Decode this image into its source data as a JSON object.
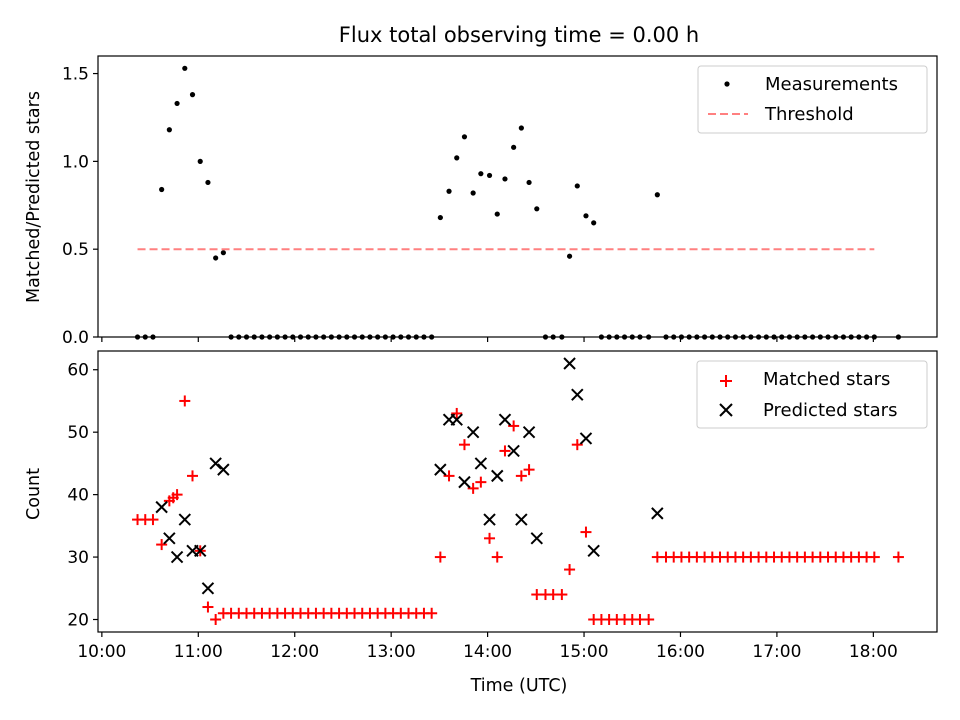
{
  "chart_data": {
    "title": "Flux total observing time = 0.00 h",
    "x_unit": "hours UTC (decimal)",
    "xlim": [
      9.96,
      18.66
    ],
    "xlabel": "Time (UTC)",
    "xtick_values": [
      10,
      11,
      12,
      13,
      14,
      15,
      16,
      17,
      18
    ],
    "xtick_labels": [
      "10:00",
      "11:00",
      "12:00",
      "13:00",
      "14:00",
      "15:00",
      "16:00",
      "17:00",
      "18:00"
    ],
    "panels": [
      {
        "type": "scatter",
        "ylabel": "Matched/Predicted stars",
        "ylim": [
          0,
          1.6
        ],
        "ytick_values": [
          0,
          0.5,
          1.0,
          1.5
        ],
        "ytick_labels": [
          "0.0",
          "0.5",
          "1.0",
          "1.5"
        ],
        "legend_position": "top-right",
        "series": [
          {
            "name": "Measurements",
            "marker": "dot",
            "color": "#000000",
            "points": [
              [
                10.37,
                0
              ],
              [
                10.45,
                0
              ],
              [
                10.53,
                0
              ],
              [
                10.62,
                0.84
              ],
              [
                10.7,
                1.18
              ],
              [
                10.78,
                1.33
              ],
              [
                10.86,
                1.53
              ],
              [
                10.94,
                1.38
              ],
              [
                11.02,
                1.0
              ],
              [
                11.1,
                0.88
              ],
              [
                11.18,
                0.45
              ],
              [
                11.26,
                0.48
              ],
              [
                11.34,
                0
              ],
              [
                11.42,
                0
              ],
              [
                11.5,
                0
              ],
              [
                11.58,
                0
              ],
              [
                11.66,
                0
              ],
              [
                11.74,
                0
              ],
              [
                11.82,
                0
              ],
              [
                11.9,
                0
              ],
              [
                11.98,
                0
              ],
              [
                12.06,
                0
              ],
              [
                12.14,
                0
              ],
              [
                12.22,
                0
              ],
              [
                12.3,
                0
              ],
              [
                12.38,
                0
              ],
              [
                12.46,
                0
              ],
              [
                12.54,
                0
              ],
              [
                12.62,
                0
              ],
              [
                12.7,
                0
              ],
              [
                12.78,
                0
              ],
              [
                12.86,
                0
              ],
              [
                12.94,
                0
              ],
              [
                13.02,
                0
              ],
              [
                13.1,
                0
              ],
              [
                13.18,
                0
              ],
              [
                13.26,
                0
              ],
              [
                13.34,
                0
              ],
              [
                13.42,
                0
              ],
              [
                13.51,
                0.68
              ],
              [
                13.6,
                0.83
              ],
              [
                13.68,
                1.02
              ],
              [
                13.76,
                1.14
              ],
              [
                13.85,
                0.82
              ],
              [
                13.93,
                0.93
              ],
              [
                14.02,
                0.92
              ],
              [
                14.1,
                0.7
              ],
              [
                14.18,
                0.9
              ],
              [
                14.27,
                1.08
              ],
              [
                14.35,
                1.19
              ],
              [
                14.43,
                0.88
              ],
              [
                14.51,
                0.73
              ],
              [
                14.6,
                0
              ],
              [
                14.68,
                0
              ],
              [
                14.77,
                0
              ],
              [
                14.85,
                0.46
              ],
              [
                14.93,
                0.86
              ],
              [
                15.02,
                0.69
              ],
              [
                15.1,
                0.65
              ],
              [
                15.18,
                0
              ],
              [
                15.26,
                0
              ],
              [
                15.34,
                0
              ],
              [
                15.42,
                0
              ],
              [
                15.5,
                0
              ],
              [
                15.58,
                0
              ],
              [
                15.67,
                0
              ],
              [
                15.76,
                0.81
              ],
              [
                15.85,
                0
              ],
              [
                15.93,
                0
              ],
              [
                16.01,
                0
              ],
              [
                16.09,
                0
              ],
              [
                16.17,
                0
              ],
              [
                16.25,
                0
              ],
              [
                16.33,
                0
              ],
              [
                16.41,
                0
              ],
              [
                16.49,
                0
              ],
              [
                16.57,
                0
              ],
              [
                16.65,
                0
              ],
              [
                16.73,
                0
              ],
              [
                16.81,
                0
              ],
              [
                16.89,
                0
              ],
              [
                16.97,
                0
              ],
              [
                17.05,
                0
              ],
              [
                17.13,
                0
              ],
              [
                17.21,
                0
              ],
              [
                17.29,
                0
              ],
              [
                17.37,
                0
              ],
              [
                17.45,
                0
              ],
              [
                17.53,
                0
              ],
              [
                17.61,
                0
              ],
              [
                17.69,
                0
              ],
              [
                17.77,
                0
              ],
              [
                17.85,
                0
              ],
              [
                17.93,
                0
              ],
              [
                18.01,
                0
              ],
              [
                18.26,
                0
              ]
            ]
          },
          {
            "name": "Threshold",
            "line_style": "dashed",
            "color": "#ff8080",
            "x_range": [
              10.37,
              18.01
            ],
            "y": 0.5
          }
        ]
      },
      {
        "type": "scatter",
        "ylabel": "Count",
        "ylim": [
          18,
          63
        ],
        "ytick_values": [
          20,
          30,
          40,
          50,
          60
        ],
        "ytick_labels": [
          "20",
          "30",
          "40",
          "50",
          "60"
        ],
        "legend_position": "top-right",
        "series": [
          {
            "name": "Matched stars",
            "marker": "plus",
            "color": "#ff0000",
            "points": [
              [
                10.37,
                36
              ],
              [
                10.45,
                36
              ],
              [
                10.53,
                36
              ],
              [
                10.62,
                32
              ],
              [
                10.7,
                39
              ],
              [
                10.74,
                39.5
              ],
              [
                10.78,
                40
              ],
              [
                10.86,
                55
              ],
              [
                10.94,
                43
              ],
              [
                11.02,
                31
              ],
              [
                11.1,
                22
              ],
              [
                11.18,
                20
              ],
              [
                11.26,
                21
              ],
              [
                11.34,
                21
              ],
              [
                11.42,
                21
              ],
              [
                11.5,
                21
              ],
              [
                11.58,
                21
              ],
              [
                11.66,
                21
              ],
              [
                11.74,
                21
              ],
              [
                11.82,
                21
              ],
              [
                11.9,
                21
              ],
              [
                11.98,
                21
              ],
              [
                12.06,
                21
              ],
              [
                12.14,
                21
              ],
              [
                12.22,
                21
              ],
              [
                12.3,
                21
              ],
              [
                12.38,
                21
              ],
              [
                12.46,
                21
              ],
              [
                12.54,
                21
              ],
              [
                12.62,
                21
              ],
              [
                12.7,
                21
              ],
              [
                12.78,
                21
              ],
              [
                12.86,
                21
              ],
              [
                12.94,
                21
              ],
              [
                13.02,
                21
              ],
              [
                13.1,
                21
              ],
              [
                13.18,
                21
              ],
              [
                13.26,
                21
              ],
              [
                13.34,
                21
              ],
              [
                13.42,
                21
              ],
              [
                13.51,
                30
              ],
              [
                13.6,
                43
              ],
              [
                13.68,
                53
              ],
              [
                13.76,
                48
              ],
              [
                13.85,
                41
              ],
              [
                13.93,
                42
              ],
              [
                14.02,
                33
              ],
              [
                14.1,
                30
              ],
              [
                14.18,
                47
              ],
              [
                14.27,
                51
              ],
              [
                14.35,
                43
              ],
              [
                14.43,
                44
              ],
              [
                14.51,
                24
              ],
              [
                14.6,
                24
              ],
              [
                14.68,
                24
              ],
              [
                14.77,
                24
              ],
              [
                14.85,
                28
              ],
              [
                14.93,
                48
              ],
              [
                15.02,
                34
              ],
              [
                15.1,
                20
              ],
              [
                15.18,
                20
              ],
              [
                15.26,
                20
              ],
              [
                15.34,
                20
              ],
              [
                15.42,
                20
              ],
              [
                15.5,
                20
              ],
              [
                15.58,
                20
              ],
              [
                15.67,
                20
              ],
              [
                15.76,
                30
              ],
              [
                15.85,
                30
              ],
              [
                15.93,
                30
              ],
              [
                16.01,
                30
              ],
              [
                16.09,
                30
              ],
              [
                16.17,
                30
              ],
              [
                16.25,
                30
              ],
              [
                16.33,
                30
              ],
              [
                16.41,
                30
              ],
              [
                16.49,
                30
              ],
              [
                16.57,
                30
              ],
              [
                16.65,
                30
              ],
              [
                16.73,
                30
              ],
              [
                16.81,
                30
              ],
              [
                16.89,
                30
              ],
              [
                16.97,
                30
              ],
              [
                17.05,
                30
              ],
              [
                17.13,
                30
              ],
              [
                17.21,
                30
              ],
              [
                17.29,
                30
              ],
              [
                17.37,
                30
              ],
              [
                17.45,
                30
              ],
              [
                17.53,
                30
              ],
              [
                17.61,
                30
              ],
              [
                17.69,
                30
              ],
              [
                17.77,
                30
              ],
              [
                17.85,
                30
              ],
              [
                17.93,
                30
              ],
              [
                18.01,
                30
              ],
              [
                18.26,
                30
              ]
            ]
          },
          {
            "name": "Predicted stars",
            "marker": "x",
            "color": "#000000",
            "points": [
              [
                10.62,
                38
              ],
              [
                10.7,
                33
              ],
              [
                10.78,
                30
              ],
              [
                10.86,
                36
              ],
              [
                10.94,
                31
              ],
              [
                11.02,
                31
              ],
              [
                11.1,
                25
              ],
              [
                11.18,
                45
              ],
              [
                11.26,
                44
              ],
              [
                13.51,
                44
              ],
              [
                13.6,
                52
              ],
              [
                13.68,
                52
              ],
              [
                13.76,
                42
              ],
              [
                13.85,
                50
              ],
              [
                13.93,
                45
              ],
              [
                14.02,
                36
              ],
              [
                14.1,
                43
              ],
              [
                14.18,
                52
              ],
              [
                14.27,
                47
              ],
              [
                14.35,
                36
              ],
              [
                14.43,
                50
              ],
              [
                14.51,
                33
              ],
              [
                14.85,
                61
              ],
              [
                14.93,
                56
              ],
              [
                15.02,
                49
              ],
              [
                15.1,
                31
              ],
              [
                15.76,
                37
              ]
            ]
          }
        ]
      }
    ]
  }
}
